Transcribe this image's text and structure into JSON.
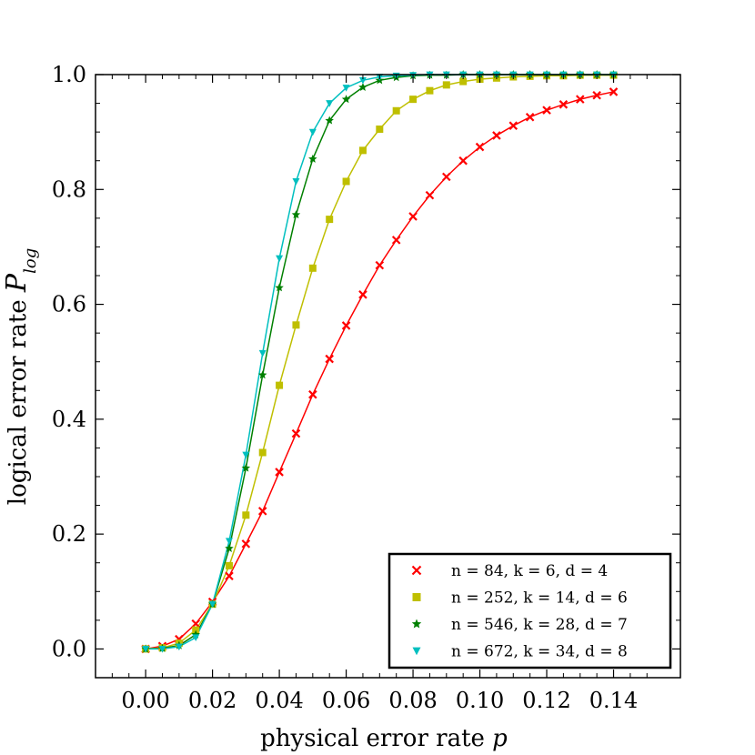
{
  "chart_data": {
    "type": "line",
    "xlabel": "physical error rate p",
    "ylabel": "logical error rate P_log",
    "xlim": [
      -0.015,
      0.16
    ],
    "ylim": [
      -0.05,
      1.0
    ],
    "xticks": [
      "0.00",
      "0.02",
      "0.04",
      "0.06",
      "0.08",
      "0.10",
      "0.12",
      "0.14"
    ],
    "xtick_values": [
      0.0,
      0.02,
      0.04,
      0.06,
      0.08,
      0.1,
      0.12,
      0.14
    ],
    "yticks": [
      "0.0",
      "0.2",
      "0.4",
      "0.6",
      "0.8",
      "1.0"
    ],
    "ytick_values": [
      0.0,
      0.2,
      0.4,
      0.6,
      0.8,
      1.0
    ],
    "legend_position": "bottom-right",
    "series": [
      {
        "name": "n = 84, k = 6, d = 4",
        "color": "#ff0000",
        "marker": "x",
        "x": [
          0.0,
          0.005,
          0.01,
          0.015,
          0.02,
          0.025,
          0.03,
          0.035,
          0.04,
          0.045,
          0.05,
          0.055,
          0.06,
          0.065,
          0.07,
          0.075,
          0.08,
          0.085,
          0.09,
          0.095,
          0.1,
          0.105,
          0.11,
          0.115,
          0.12,
          0.125,
          0.13,
          0.135,
          0.14
        ],
        "y": [
          0.0,
          0.005,
          0.017,
          0.044,
          0.082,
          0.127,
          0.183,
          0.24,
          0.308,
          0.375,
          0.443,
          0.505,
          0.563,
          0.617,
          0.668,
          0.712,
          0.753,
          0.79,
          0.822,
          0.85,
          0.874,
          0.894,
          0.911,
          0.926,
          0.938,
          0.948,
          0.957,
          0.964,
          0.97
        ]
      },
      {
        "name": "n = 252, k = 14, d = 6",
        "color": "#bfbf00",
        "marker": "square",
        "x": [
          0.0,
          0.005,
          0.01,
          0.015,
          0.02,
          0.025,
          0.03,
          0.035,
          0.04,
          0.045,
          0.05,
          0.055,
          0.06,
          0.065,
          0.07,
          0.075,
          0.08,
          0.085,
          0.09,
          0.095,
          0.1,
          0.105,
          0.11,
          0.115,
          0.12,
          0.125,
          0.13,
          0.135,
          0.14
        ],
        "y": [
          0.0,
          0.002,
          0.01,
          0.033,
          0.078,
          0.145,
          0.233,
          0.342,
          0.459,
          0.564,
          0.663,
          0.748,
          0.814,
          0.868,
          0.905,
          0.937,
          0.957,
          0.972,
          0.982,
          0.988,
          0.992,
          0.994,
          0.996,
          0.997,
          0.998,
          0.998,
          0.999,
          0.999,
          0.999
        ]
      },
      {
        "name": "n = 546, k = 28, d = 7",
        "color": "#008000",
        "marker": "star",
        "x": [
          0.0,
          0.005,
          0.01,
          0.015,
          0.02,
          0.025,
          0.03,
          0.035,
          0.04,
          0.045,
          0.05,
          0.055,
          0.06,
          0.065,
          0.07,
          0.075,
          0.08,
          0.085,
          0.09,
          0.095,
          0.1,
          0.105,
          0.11,
          0.115,
          0.12,
          0.125,
          0.13,
          0.135,
          0.14
        ],
        "y": [
          0.0,
          0.001,
          0.006,
          0.025,
          0.078,
          0.175,
          0.315,
          0.477,
          0.629,
          0.756,
          0.853,
          0.92,
          0.957,
          0.978,
          0.99,
          0.995,
          0.998,
          0.999,
          0.999,
          1.0,
          1.0,
          1.0,
          1.0,
          1.0,
          1.0,
          1.0,
          1.0,
          1.0,
          1.0
        ]
      },
      {
        "name": "n = 672, k = 34, d = 8",
        "color": "#00bfbf",
        "marker": "triangle-down",
        "x": [
          0.0,
          0.005,
          0.01,
          0.015,
          0.02,
          0.025,
          0.03,
          0.035,
          0.04,
          0.045,
          0.05,
          0.055,
          0.06,
          0.065,
          0.07,
          0.075,
          0.08,
          0.085,
          0.09,
          0.095,
          0.1,
          0.105,
          0.11,
          0.115,
          0.12,
          0.125,
          0.13,
          0.135,
          0.14
        ],
        "y": [
          0.0,
          0.0,
          0.004,
          0.02,
          0.078,
          0.188,
          0.338,
          0.515,
          0.68,
          0.814,
          0.9,
          0.95,
          0.977,
          0.99,
          0.996,
          0.998,
          0.999,
          1.0,
          1.0,
          1.0,
          1.0,
          1.0,
          1.0,
          1.0,
          1.0,
          1.0,
          1.0,
          1.0,
          1.0
        ]
      }
    ]
  }
}
